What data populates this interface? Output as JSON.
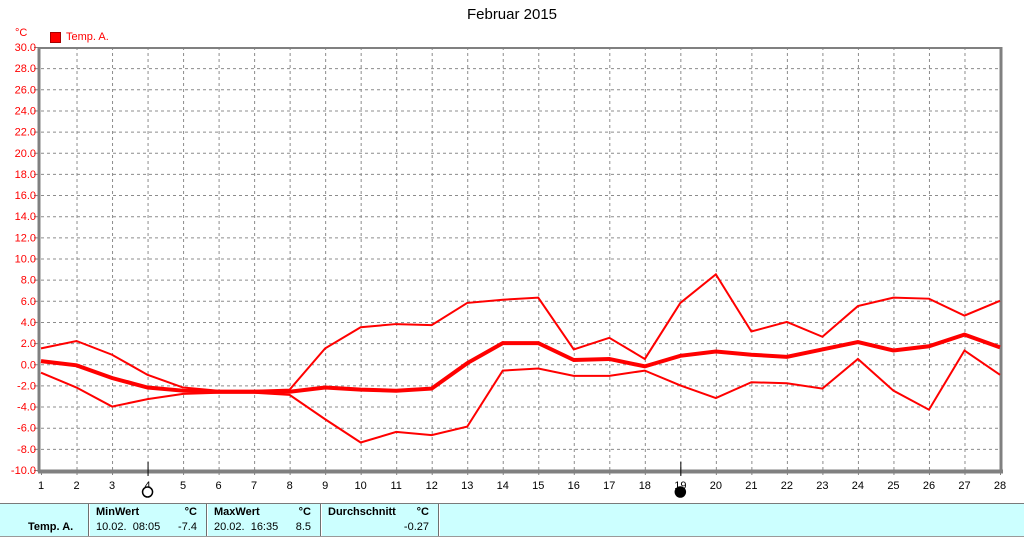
{
  "title": "Februar 2015",
  "y_axis_unit": "°C",
  "legend": {
    "label": "Temp. A.",
    "color": "#ff0000"
  },
  "chart_data": {
    "type": "line",
    "title": "Februar 2015",
    "x": [
      1,
      2,
      3,
      4,
      5,
      6,
      7,
      8,
      9,
      10,
      11,
      12,
      13,
      14,
      15,
      16,
      17,
      18,
      19,
      20,
      21,
      22,
      23,
      24,
      25,
      26,
      27,
      28
    ],
    "series": [
      {
        "name": "daily-max",
        "thick": false,
        "values": [
          1.5,
          2.2,
          0.9,
          -1.0,
          -2.2,
          -2.5,
          -2.5,
          -2.4,
          1.5,
          3.5,
          3.8,
          3.7,
          5.8,
          6.1,
          6.3,
          1.4,
          2.5,
          0.5,
          5.8,
          8.5,
          3.1,
          4.0,
          2.6,
          5.5,
          6.3,
          6.2,
          4.6,
          6.0
        ]
      },
      {
        "name": "daily-mean",
        "thick": true,
        "values": [
          0.3,
          -0.1,
          -1.3,
          -2.2,
          -2.5,
          -2.6,
          -2.6,
          -2.6,
          -2.2,
          -2.4,
          -2.5,
          -2.3,
          0.1,
          2.0,
          2.0,
          0.4,
          0.5,
          -0.2,
          0.8,
          1.2,
          0.9,
          0.7,
          1.4,
          2.1,
          1.3,
          1.7,
          2.8,
          1.6
        ]
      },
      {
        "name": "daily-min",
        "thick": false,
        "values": [
          -0.8,
          -2.2,
          -4.0,
          -3.3,
          -2.8,
          -2.7,
          -2.7,
          -2.9,
          -5.2,
          -7.4,
          -6.4,
          -6.7,
          -5.9,
          -0.6,
          -0.4,
          -1.1,
          -1.1,
          -0.6,
          -2.0,
          -3.2,
          -1.7,
          -1.8,
          -2.3,
          0.5,
          -2.5,
          -4.3,
          1.3,
          -1.0
        ]
      }
    ],
    "ylim": [
      -10,
      30
    ],
    "ytick_step": 2,
    "xlim": [
      1,
      28
    ],
    "grid": true,
    "legend_position": "top-left",
    "line_color": "#ff0000",
    "grid_color": "#8c8c8c",
    "frame_color": "#808080",
    "label_colors": {
      "y": "#ff0000",
      "x": "#000000"
    },
    "day_markers": [
      {
        "day": 4,
        "symbol": "open-circle"
      },
      {
        "day": 19,
        "symbol": "filled-circle"
      }
    ]
  },
  "statusbar": {
    "row_label": "Temp. A.",
    "background": "#ccffff",
    "columns": [
      {
        "header": "MinWert",
        "unit": "°C",
        "datetime": "10.02.  08:05",
        "value": "-7.4"
      },
      {
        "header": "MaxWert",
        "unit": "°C",
        "datetime": "20.02.  16:35",
        "value": "8.5"
      },
      {
        "header": "Durchschnitt",
        "unit": "°C",
        "datetime": "",
        "value": "-0.27"
      }
    ]
  }
}
